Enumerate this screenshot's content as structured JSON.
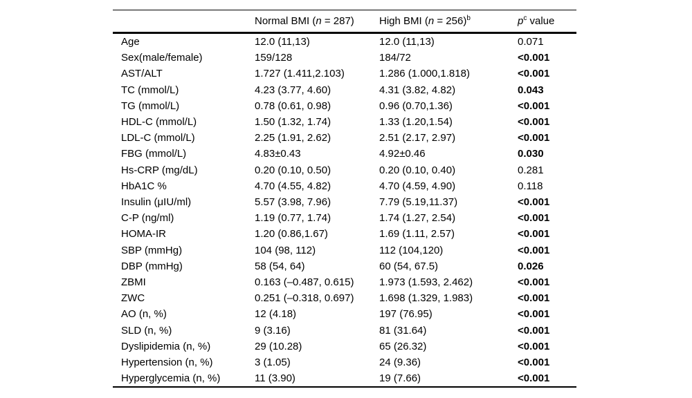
{
  "table": {
    "header": {
      "variable": "",
      "normal_bmi": {
        "prefix": "Normal BMI (",
        "italic_n": "n",
        "suffix": " = 287)"
      },
      "high_bmi": {
        "prefix": "High BMI (",
        "italic_n": "n",
        "suffix": " = 256)",
        "superscript": "b"
      },
      "p_value": {
        "italic_p": "p",
        "superscript": "c",
        "suffix": " value"
      }
    },
    "rows": [
      {
        "label": "Age",
        "normal": "12.0 (11,13)",
        "high": "12.0 (11,13)",
        "p": "0.071",
        "p_bold": false
      },
      {
        "label": "Sex(male/female)",
        "normal": "159/128",
        "high": "184/72",
        "p": "<0.001",
        "p_bold": true
      },
      {
        "label": "AST/ALT",
        "normal": "1.727 (1.411,2.103)",
        "high": "1.286 (1.000,1.818)",
        "p": "<0.001",
        "p_bold": true
      },
      {
        "label": "TC (mmol/L)",
        "normal": "4.23 (3.77, 4.60)",
        "high": "4.31 (3.82, 4.82)",
        "p": "0.043",
        "p_bold": true
      },
      {
        "label": "TG (mmol/L)",
        "normal": "0.78 (0.61, 0.98)",
        "high": "0.96 (0.70,1.36)",
        "p": "<0.001",
        "p_bold": true
      },
      {
        "label": "HDL-C (mmol/L)",
        "normal": "1.50 (1.32, 1.74)",
        "high": "1.33 (1.20,1.54)",
        "p": "<0.001",
        "p_bold": true
      },
      {
        "label": "LDL-C (mmol/L)",
        "normal": "2.25 (1.91, 2.62)",
        "high": "2.51 (2.17, 2.97)",
        "p": "<0.001",
        "p_bold": true
      },
      {
        "label": "FBG (mmol/L)",
        "normal": "4.83±0.43",
        "high": "4.92±0.46",
        "p": "0.030",
        "p_bold": true
      },
      {
        "label": "Hs-CRP (mg/dL)",
        "normal": "0.20 (0.10, 0.50)",
        "high": "0.20 (0.10, 0.40)",
        "p": "0.281",
        "p_bold": false
      },
      {
        "label": "HbA1C %",
        "normal": "4.70 (4.55, 4.82)",
        "high": "4.70 (4.59, 4.90)",
        "p": "0.118",
        "p_bold": false
      },
      {
        "label": "Insulin (μIU/ml)",
        "normal": "5.57 (3.98, 7.96)",
        "high": "7.79 (5.19,11.37)",
        "p": "<0.001",
        "p_bold": true
      },
      {
        "label": "C-P (ng/ml)",
        "normal": "1.19 (0.77, 1.74)",
        "high": "1.74 (1.27, 2.54)",
        "p": "<0.001",
        "p_bold": true
      },
      {
        "label": "HOMA-IR",
        "normal": "1.20 (0.86,1.67)",
        "high": "1.69 (1.11, 2.57)",
        "p": "<0.001",
        "p_bold": true
      },
      {
        "label": "SBP (mmHg)",
        "normal": "104 (98, 112)",
        "high": "112 (104,120)",
        "p": "<0.001",
        "p_bold": true
      },
      {
        "label": "DBP (mmHg)",
        "normal": "58 (54, 64)",
        "high": "60 (54, 67.5)",
        "p": "0.026",
        "p_bold": true
      },
      {
        "label": "ZBMI",
        "normal": "0.163 (–0.487, 0.615)",
        "high": "1.973 (1.593, 2.462)",
        "p": "<0.001",
        "p_bold": true
      },
      {
        "label": "ZWC",
        "normal": "0.251 (–0.318, 0.697)",
        "high": "1.698 (1.329, 1.983)",
        "p": "<0.001",
        "p_bold": true
      },
      {
        "label": "AO (n, %)",
        "normal": "12 (4.18)",
        "high": "197 (76.95)",
        "p": "<0.001",
        "p_bold": true
      },
      {
        "label": "SLD (n, %)",
        "normal": "9 (3.16)",
        "high": "81 (31.64)",
        "p": "<0.001",
        "p_bold": true
      },
      {
        "label": "Dyslipidemia (n, %)",
        "normal": "29 (10.28)",
        "high": "65 (26.32)",
        "p": "<0.001",
        "p_bold": true
      },
      {
        "label": "Hypertension (n, %)",
        "normal": "3 (1.05)",
        "high": "24 (9.36)",
        "p": "<0.001",
        "p_bold": true
      },
      {
        "label": "Hyperglycemia (n, %)",
        "normal": "11 (3.90)",
        "high": "19 (7.66)",
        "p": "<0.001",
        "p_bold": true
      }
    ]
  }
}
